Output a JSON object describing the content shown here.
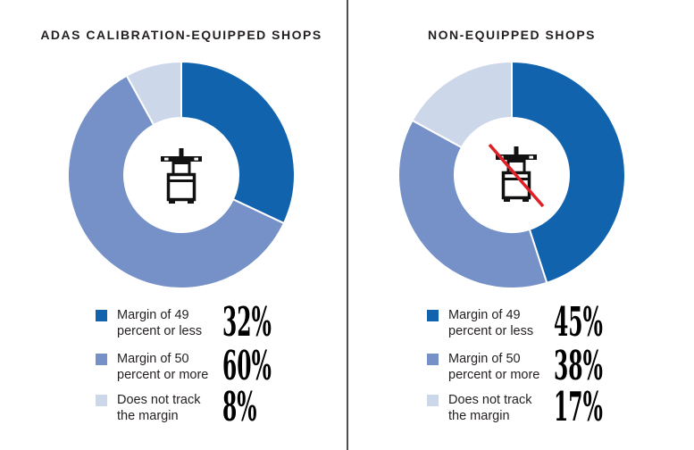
{
  "page": {
    "background": "#ffffff",
    "divider_color": "#4d4d4d"
  },
  "icons": {
    "left_icon": "adas-calibration-rig-icon",
    "right_icon": "adas-calibration-rig-crossed-out-icon",
    "glyph_color": "#111111",
    "slash_color": "#de2027"
  },
  "chart_data": [
    {
      "type": "pie",
      "subtype": "donut",
      "title": "ADAS CALIBRATION-EQUIPPED SHOPS",
      "start_angle_deg": 0,
      "direction": "clockwise",
      "total": 100,
      "legend_position": "bottom",
      "categories": [
        "Margin of 49 percent or less",
        "Margin of 50 percent or more",
        "Does not track the margin"
      ],
      "values": [
        32,
        60,
        8
      ],
      "series": [
        {
          "label": "Margin of 49 percent or less",
          "label_lines": [
            "Margin of 49",
            "percent or less"
          ],
          "value": 32,
          "display": "32%",
          "color": "#1263ae"
        },
        {
          "label": "Margin of 50 percent or more",
          "label_lines": [
            "Margin of 50",
            "percent or more"
          ],
          "value": 60,
          "display": "60%",
          "color": "#7591c8"
        },
        {
          "label": "Does not track the margin",
          "label_lines": [
            "Does not track",
            "the margin"
          ],
          "value": 8,
          "display": "8%",
          "color": "#ccd7ea"
        }
      ]
    },
    {
      "type": "pie",
      "subtype": "donut",
      "title": "NON-EQUIPPED SHOPS",
      "start_angle_deg": 0,
      "direction": "clockwise",
      "total": 100,
      "legend_position": "bottom",
      "categories": [
        "Margin of 49 percent or less",
        "Margin of 50 percent or more",
        "Does not track the margin"
      ],
      "values": [
        45,
        38,
        17
      ],
      "series": [
        {
          "label": "Margin of 49 percent or less",
          "label_lines": [
            "Margin of 49",
            "percent or less"
          ],
          "value": 45,
          "display": "45%",
          "color": "#1263ae"
        },
        {
          "label": "Margin of 50 percent or more",
          "label_lines": [
            "Margin of 50",
            "percent or more"
          ],
          "value": 38,
          "display": "38%",
          "color": "#7591c8"
        },
        {
          "label": "Does not track the margin",
          "label_lines": [
            "Does not track",
            "the margin"
          ],
          "value": 17,
          "display": "17%",
          "color": "#ccd7ea"
        }
      ]
    }
  ]
}
